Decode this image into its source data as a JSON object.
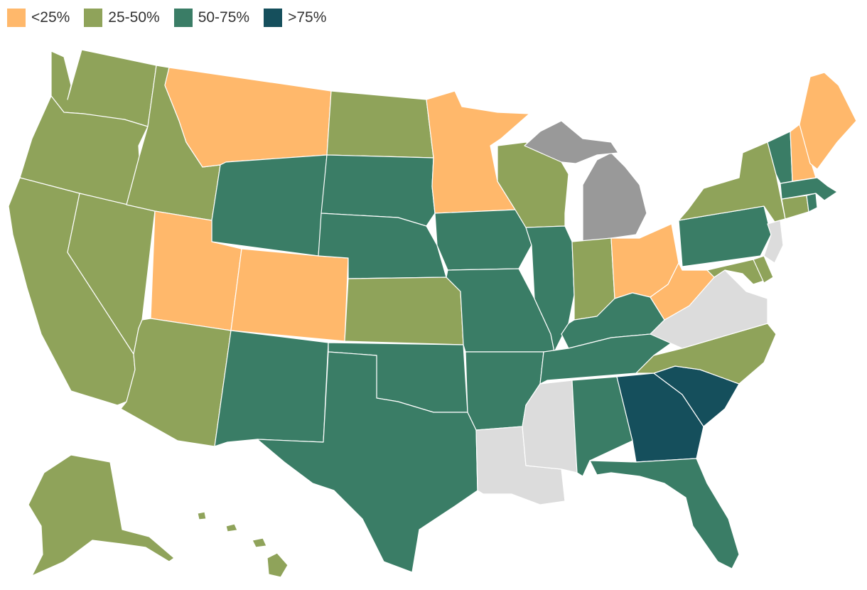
{
  "legend": [
    {
      "label": "<25%",
      "color": "#ffb86b"
    },
    {
      "label": "25-50%",
      "color": "#8fa35a"
    },
    {
      "label": "50-75%",
      "color": "#3a7d66"
    },
    {
      "label": ">75%",
      "color": "#154f5c"
    }
  ],
  "colors": {
    "nodata": "#dcdcdc",
    "dark_gray": "#999999"
  },
  "states": {
    "WA": "25-50%",
    "OR": "25-50%",
    "CA": "25-50%",
    "NV": "25-50%",
    "ID": "25-50%",
    "MT": "<25%",
    "WY": "50-75%",
    "UT": "<25%",
    "CO": "<25%",
    "AZ": "25-50%",
    "NM": "50-75%",
    "ND": "25-50%",
    "SD": "50-75%",
    "NE": "50-75%",
    "KS": "25-50%",
    "OK": "50-75%",
    "TX": "50-75%",
    "MN": "<25%",
    "IA": "50-75%",
    "MO": "50-75%",
    "AR": "50-75%",
    "LA": "no data",
    "WI": "25-50%",
    "IL": "50-75%",
    "MI": "gray",
    "IN": "25-50%",
    "OH": "<25%",
    "KY": "50-75%",
    "TN": "50-75%",
    "MS": "no data",
    "AL": "50-75%",
    "GA": ">75%",
    "FL": "50-75%",
    "SC": ">75%",
    "NC": "25-50%",
    "VA": "no data",
    "WV": "<25%",
    "PA": "50-75%",
    "NY": "25-50%",
    "VT": "50-75%",
    "NH": "<25%",
    "ME": "<25%",
    "MA": "50-75%",
    "CT": "25-50%",
    "RI": "50-75%",
    "NJ": "no data",
    "DE": "25-50%",
    "MD": "25-50%",
    "AK": "25-50%",
    "HI": "25-50%"
  }
}
